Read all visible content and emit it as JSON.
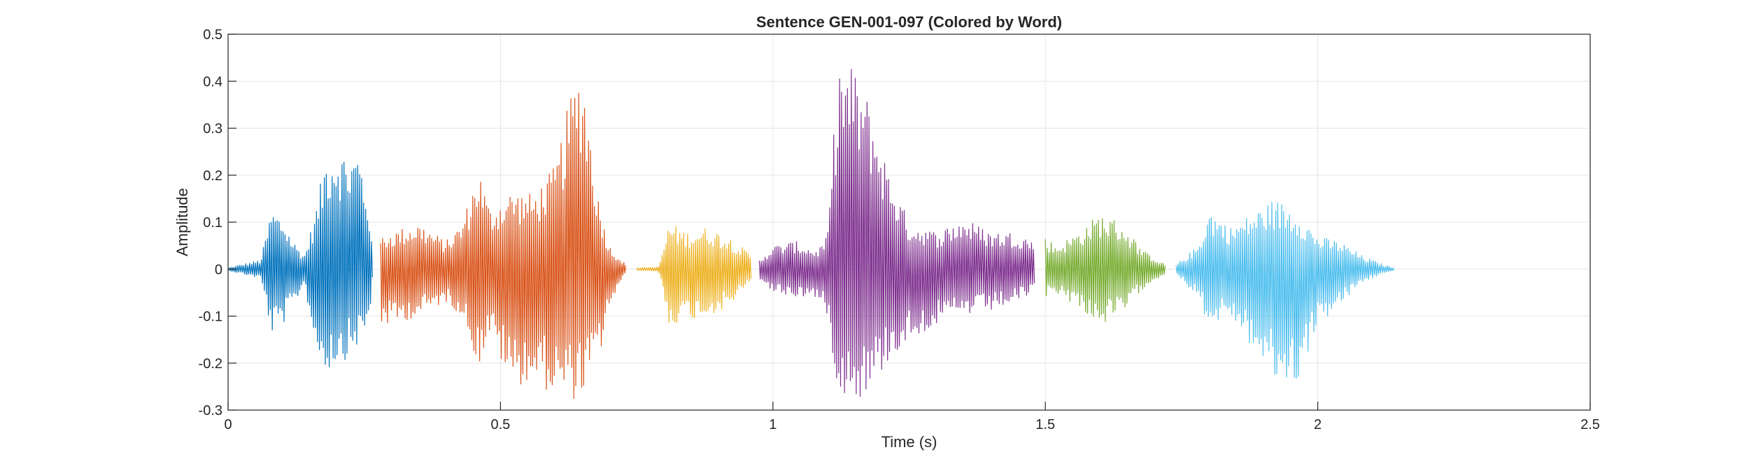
{
  "chart_data": {
    "type": "line",
    "title": "Sentence GEN-001-097 (Colored by Word)",
    "xlabel": "Time (s)",
    "ylabel": "Amplitude",
    "xlim": [
      0,
      2.5
    ],
    "ylim": [
      -0.3,
      0.5
    ],
    "xticks": [
      0,
      0.5,
      1,
      1.5,
      2,
      2.5
    ],
    "xtick_labels": [
      "0",
      "0.5",
      "1",
      "1.5",
      "2",
      "2.5"
    ],
    "yticks": [
      -0.3,
      -0.2,
      -0.1,
      0,
      0.1,
      0.2,
      0.3,
      0.4,
      0.5
    ],
    "ytick_labels": [
      "-0.3",
      "-0.2",
      "-0.1",
      "0",
      "0.1",
      "0.2",
      "0.3",
      "0.4",
      "0.5"
    ],
    "grid": true,
    "legend": "none",
    "series": [
      {
        "color": "#0072BD",
        "x": [
          0.0,
          0.06,
          0.08,
          0.1,
          0.12,
          0.14,
          0.16,
          0.18,
          0.2,
          0.22,
          0.24,
          0.26,
          0.265
        ],
        "pos": [
          0.003,
          0.02,
          0.13,
          0.11,
          0.06,
          0.03,
          0.12,
          0.25,
          0.27,
          0.24,
          0.26,
          0.13,
          0.02
        ],
        "neg": [
          -0.003,
          -0.02,
          -0.14,
          -0.12,
          -0.08,
          -0.03,
          -0.17,
          -0.22,
          -0.2,
          -0.19,
          -0.16,
          -0.12,
          -0.02
        ]
      },
      {
        "color": "#D95319",
        "x": [
          0.28,
          0.3,
          0.35,
          0.4,
          0.43,
          0.46,
          0.48,
          0.52,
          0.56,
          0.6,
          0.63,
          0.65,
          0.68,
          0.7,
          0.73
        ],
        "pos": [
          0.07,
          0.08,
          0.1,
          0.06,
          0.1,
          0.22,
          0.13,
          0.17,
          0.16,
          0.22,
          0.38,
          0.45,
          0.15,
          0.05,
          0.01
        ],
        "neg": [
          -0.12,
          -0.12,
          -0.1,
          -0.07,
          -0.1,
          -0.21,
          -0.14,
          -0.25,
          -0.24,
          -0.27,
          -0.28,
          -0.27,
          -0.2,
          -0.08,
          -0.01
        ]
      },
      {
        "color": "#EDB120",
        "x": [
          0.75,
          0.79,
          0.81,
          0.84,
          0.88,
          0.92,
          0.96
        ],
        "pos": [
          0.003,
          0.005,
          0.1,
          0.08,
          0.09,
          0.07,
          0.03
        ],
        "neg": [
          -0.003,
          -0.005,
          -0.12,
          -0.11,
          -0.1,
          -0.08,
          -0.03
        ]
      },
      {
        "color": "#7E2F8E",
        "x": [
          0.975,
          1.0,
          1.04,
          1.08,
          1.1,
          1.12,
          1.15,
          1.18,
          1.21,
          1.25,
          1.3,
          1.35,
          1.4,
          1.45,
          1.48
        ],
        "pos": [
          0.02,
          0.05,
          0.06,
          0.04,
          0.07,
          0.45,
          0.43,
          0.35,
          0.22,
          0.1,
          0.08,
          0.11,
          0.08,
          0.08,
          0.06
        ],
        "neg": [
          -0.02,
          -0.05,
          -0.06,
          -0.06,
          -0.1,
          -0.26,
          -0.28,
          -0.26,
          -0.2,
          -0.15,
          -0.12,
          -0.1,
          -0.09,
          -0.07,
          -0.05
        ]
      },
      {
        "color": "#77AC30",
        "x": [
          1.5,
          1.52,
          1.56,
          1.6,
          1.64,
          1.68,
          1.72
        ],
        "pos": [
          0.07,
          0.05,
          0.08,
          0.12,
          0.1,
          0.04,
          0.01
        ],
        "neg": [
          -0.06,
          -0.05,
          -0.08,
          -0.12,
          -0.1,
          -0.04,
          -0.01
        ]
      },
      {
        "color": "#4DBEEE",
        "x": [
          1.74,
          1.78,
          1.8,
          1.84,
          1.88,
          1.92,
          1.96,
          2.0,
          2.04,
          2.08,
          2.12,
          2.14
        ],
        "pos": [
          0.01,
          0.05,
          0.13,
          0.09,
          0.12,
          0.15,
          0.13,
          0.07,
          0.06,
          0.03,
          0.01,
          0.003
        ],
        "neg": [
          -0.01,
          -0.06,
          -0.12,
          -0.1,
          -0.17,
          -0.24,
          -0.25,
          -0.12,
          -0.08,
          -0.03,
          -0.01,
          -0.003
        ]
      }
    ]
  }
}
